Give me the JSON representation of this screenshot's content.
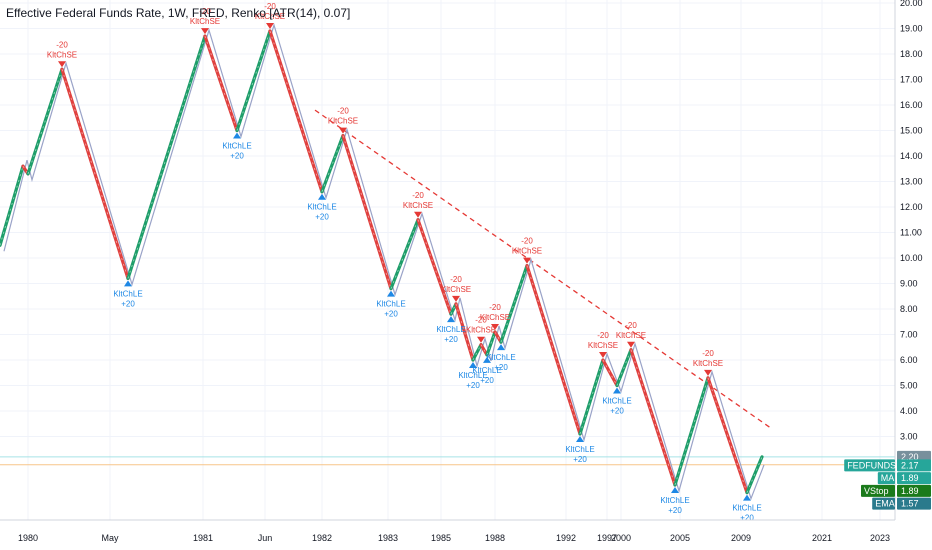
{
  "header": {
    "title": "Effective Federal Funds Rate, 1W, FRED, Renko [ATR(14), 0.07]"
  },
  "colors": {
    "up": "#1e9e6a",
    "down": "#e0413f",
    "ma": "#9aa3c8",
    "trend": "#e53935",
    "long_signal": "#1e88e5",
    "short_signal": "#e53935",
    "hline_cyan": "#a6e3e6",
    "hline_orange": "#f7c58a",
    "badge_price": "#78909c",
    "badge_fedfunds": "#26a69a",
    "badge_ma": "#26a69a",
    "badge_vstop": "#1b7a1b",
    "badge_ema": "#2a7a8c"
  },
  "chart_data": {
    "type": "line",
    "title": "Effective Federal Funds Rate, 1W, FRED, Renko [ATR(14), 0.07]",
    "ylim": [
      0.7,
      20.0
    ],
    "y_ticks": [
      "20.00",
      "19.00",
      "18.00",
      "17.00",
      "16.00",
      "15.00",
      "14.00",
      "13.00",
      "12.00",
      "11.00",
      "10.00",
      "9.00",
      "8.00",
      "7.00",
      "6.00",
      "5.00",
      "4.00",
      "3.00"
    ],
    "x_ticks": [
      "1980",
      "May",
      "1981",
      "Jun",
      "1982",
      "1983",
      "1985",
      "1988",
      "1992",
      "1997",
      "2000",
      "2005",
      "2009",
      "2021",
      "2023"
    ],
    "series": [
      {
        "name": "FEDFUNDS",
        "points": [
          [
            "start",
            10.5
          ],
          [
            "1980",
            13.6
          ],
          [
            "1980",
            13.3
          ],
          [
            "1980",
            17.4
          ],
          [
            "May",
            9.2
          ],
          [
            "1981",
            18.7
          ],
          [
            "1981",
            15.0
          ],
          [
            "Jun",
            18.9
          ],
          [
            "1982",
            12.6
          ],
          [
            "1982",
            14.8
          ],
          [
            "1983",
            8.8
          ],
          [
            "1983",
            11.5
          ],
          [
            "1985",
            7.8
          ],
          [
            "1985",
            8.2
          ],
          [
            "1985",
            6.0
          ],
          [
            "1985",
            6.6
          ],
          [
            "1988",
            6.2
          ],
          [
            "1988",
            7.1
          ],
          [
            "1988",
            6.7
          ],
          [
            "1988",
            9.7
          ],
          [
            "1992",
            3.1
          ],
          [
            "1997",
            6.0
          ],
          [
            "1997",
            5.0
          ],
          [
            "2000",
            6.4
          ],
          [
            "2005",
            1.1
          ],
          [
            "2005",
            5.3
          ],
          [
            "2009",
            0.8
          ],
          [
            "2009",
            2.2
          ]
        ]
      }
    ],
    "signals": [
      {
        "kind": "short",
        "label": "KltChSE",
        "amount": "-20",
        "x": "1980",
        "y": 17.4
      },
      {
        "kind": "long",
        "label": "KltChLE",
        "amount": "+20",
        "x": "May",
        "y": 9.2
      },
      {
        "kind": "short",
        "label": "KltChSE",
        "amount": "-20",
        "x": "1981",
        "y": 18.7
      },
      {
        "kind": "long",
        "label": "KltChLE",
        "amount": "+20",
        "x": "1981",
        "y": 15.0
      },
      {
        "kind": "short",
        "label": "KltChSE",
        "amount": "-20",
        "x": "Jun",
        "y": 18.9
      },
      {
        "kind": "long",
        "label": "KltChLE",
        "amount": "+20",
        "x": "1982",
        "y": 12.6
      },
      {
        "kind": "short",
        "label": "KltChSE",
        "amount": "-20",
        "x": "1982",
        "y": 14.8
      },
      {
        "kind": "long",
        "label": "KltChLE",
        "amount": "+20",
        "x": "1983",
        "y": 8.8
      },
      {
        "kind": "short",
        "label": "KltChSE",
        "amount": "-20",
        "x": "1983",
        "y": 11.5
      },
      {
        "kind": "long",
        "label": "KltChLE",
        "amount": "+20",
        "x": "1985",
        "y": 7.8
      },
      {
        "kind": "short",
        "label": "KltChSE",
        "amount": "-20",
        "x": "1985",
        "y": 8.2
      },
      {
        "kind": "long",
        "label": "KltChLE",
        "amount": "+20",
        "x": "1985",
        "y": 6.0
      },
      {
        "kind": "short",
        "label": "KltChSE",
        "amount": "-20",
        "x": "1985",
        "y": 6.6
      },
      {
        "kind": "long",
        "label": "KltChLE",
        "amount": "+20",
        "x": "1988",
        "y": 6.2
      },
      {
        "kind": "short",
        "label": "KltChSE",
        "amount": "-20",
        "x": "1988",
        "y": 7.1
      },
      {
        "kind": "long",
        "label": "KltChLE",
        "amount": "+20",
        "x": "1988",
        "y": 6.7
      },
      {
        "kind": "short",
        "label": "KltChSE",
        "amount": "-20",
        "x": "1988",
        "y": 9.7
      },
      {
        "kind": "long",
        "label": "KltChLE",
        "amount": "+20",
        "x": "1992",
        "y": 3.1
      },
      {
        "kind": "short",
        "label": "KltChSE",
        "amount": "-20",
        "x": "1997",
        "y": 6.0
      },
      {
        "kind": "long",
        "label": "KltChLE",
        "amount": "+20",
        "x": "1997",
        "y": 5.0
      },
      {
        "kind": "short",
        "label": "KltChSE",
        "amount": "-20",
        "x": "2000",
        "y": 6.4
      },
      {
        "kind": "long",
        "label": "KltChLE",
        "amount": "+20",
        "x": "2005",
        "y": 1.1
      },
      {
        "kind": "short",
        "label": "KltChSE",
        "amount": "-20",
        "x": "2005",
        "y": 5.3
      },
      {
        "kind": "long",
        "label": "KltChLE",
        "amount": "+20",
        "x": "2009",
        "y": 0.8
      }
    ],
    "trend_line": {
      "from": [
        "1982",
        15.8
      ],
      "to": [
        "2009",
        3.3
      ]
    },
    "horizontal_lines": [
      2.2,
      1.89
    ],
    "badges": [
      {
        "id": "price",
        "label": "",
        "value": "2.20",
        "y": 2.2
      },
      {
        "id": "fedfunds",
        "label": "FEDFUNDS",
        "value": "2.17",
        "y": 1.87
      },
      {
        "id": "ma",
        "label": "MA",
        "value": "1.89",
        "y": 1.37
      },
      {
        "id": "vstop",
        "label": "VStop",
        "value": "1.89",
        "y": 0.87
      },
      {
        "id": "ema",
        "label": "EMA",
        "value": "1.57",
        "y": 0.37
      }
    ]
  }
}
